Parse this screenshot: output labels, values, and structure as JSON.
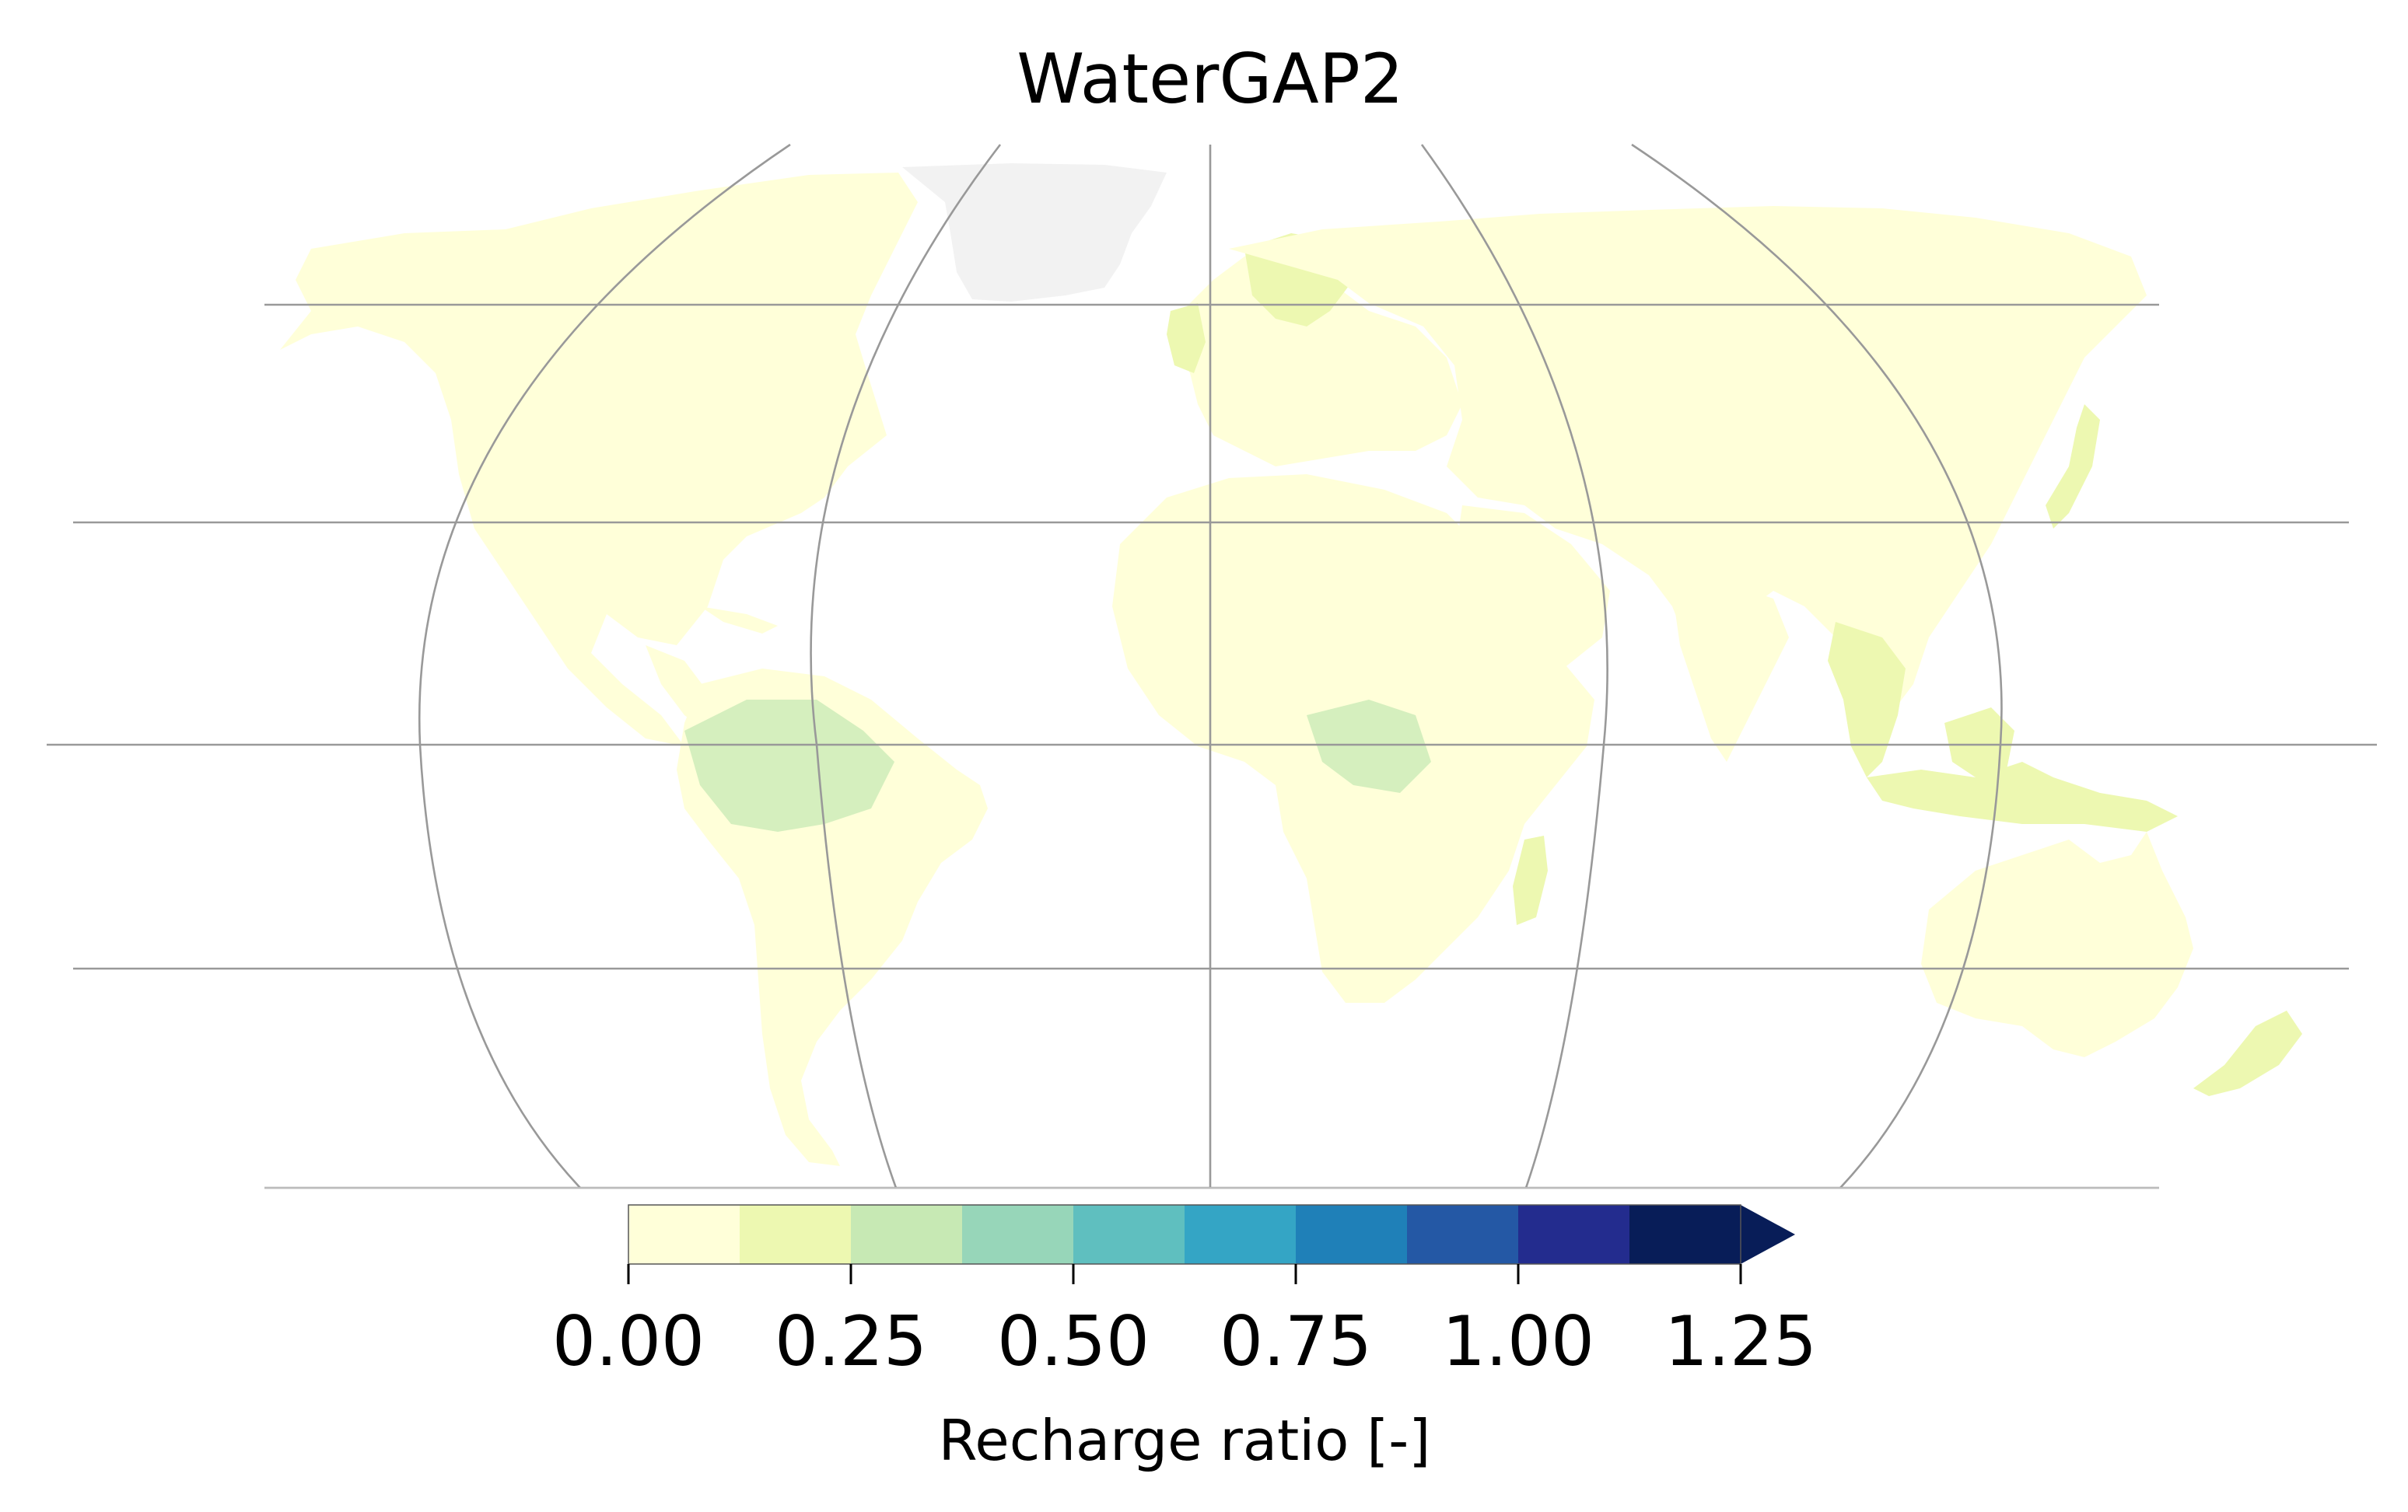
{
  "title": "WaterGAP2",
  "colorbar": {
    "label": "Recharge ratio [-]",
    "ticks": [
      "0.00",
      "0.25",
      "0.50",
      "0.75",
      "1.00",
      "1.25"
    ],
    "tick_values": [
      0,
      0.25,
      0.5,
      0.75,
      1.0,
      1.25
    ],
    "bounds": [
      0,
      0.125,
      0.25,
      0.375,
      0.5,
      0.625,
      0.75,
      0.875,
      1.0,
      1.125,
      1.25
    ],
    "colors": [
      "#ffffd9",
      "#edf8b1",
      "#c7e9b4",
      "#97d6b9",
      "#5fbfbf",
      "#34a5c5",
      "#1f80b8",
      "#2458a5",
      "#232c8e",
      "#081d58"
    ],
    "extend": "max"
  },
  "map_colors": {
    "land_low": "#ffffd9",
    "land_mid": "#edf8b1",
    "land_high": "#c7e9b4",
    "land_peak": "#5fbfbf",
    "ice": "#f2f2f2",
    "graticule": "#999999"
  }
}
